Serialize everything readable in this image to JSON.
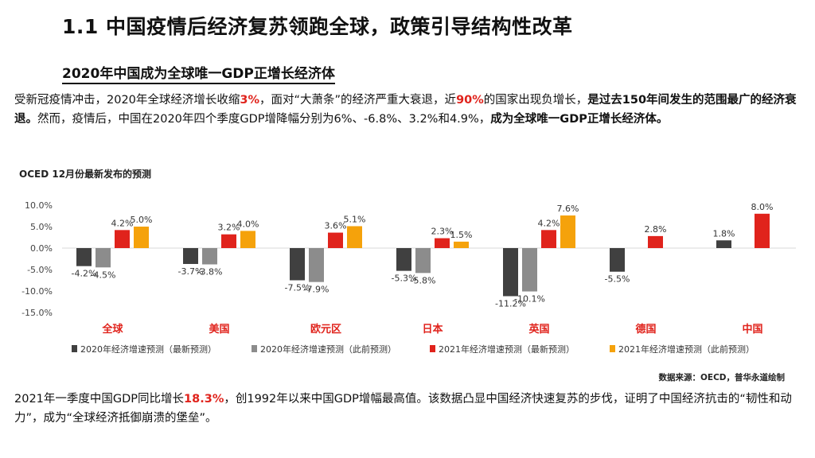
{
  "header": {
    "title": "1.1 中国疫情后经济复苏领跑全球，政策引导结构性改革",
    "subtitle": "2020年中国成为全球唯一GDP正增长经济体"
  },
  "intro": {
    "t1": "受新冠疫情冲击，2020年全球经济增长收缩",
    "h1": "3%",
    "t2": "，面对“大萧条”的经济严重大衰退，近",
    "h2": "90%",
    "t3": "的国家出现负增长，",
    "b1": "是过去150年间发生的范围最广的经济衰退。",
    "t4": "然而，疫情后，中国在2020年四个季度GDP增降幅分别为6%、-6.8%、3.2%和4.9%，",
    "b2": "成为全球唯一GDP正增长经济体。"
  },
  "chart_title": "OCED 12月份最新发布的预测",
  "source": "数据来源：OECD，普华永道绘制",
  "outro": {
    "t1": "2021年一季度中国GDP同比增长",
    "h1": "18.3%",
    "t2": "，创1992年以来中国GDP增幅最高值。该数据凸显中国经济快速复苏的步伐，证明了中国经济抗击的“韧性和动力”，成为“全球经济抵御崩溃的堡垒”。"
  },
  "colors": {
    "series": [
      "#404040",
      "#8c8c8c",
      "#e0231c",
      "#f5a20b"
    ],
    "accent": "#e0231c"
  },
  "chart_data": {
    "type": "bar",
    "title": "OCED 12月份最新发布的预测",
    "categories": [
      "全球",
      "美国",
      "欧元区",
      "日本",
      "英国",
      "德国",
      "中国"
    ],
    "ylim": [
      -15,
      10
    ],
    "yticks": [
      10,
      5,
      0,
      -5,
      -10,
      -15
    ],
    "ytick_labels": [
      "10.0%",
      "5.0%",
      "0.0%",
      "-5.0%",
      "-10.0%",
      "-15.0%"
    ],
    "series": [
      {
        "name": "2020年经济增速预测（最新预测）",
        "values": [
          -4.2,
          -3.7,
          -7.5,
          -5.3,
          -11.2,
          -5.5,
          1.8
        ],
        "labels": [
          "-4.2%",
          "-3.7%",
          "-7.5%",
          "-5.3%",
          "-11.2%",
          "-5.5%",
          "1.8%"
        ]
      },
      {
        "name": "2020年经济增速预测（此前预测）",
        "values": [
          -4.5,
          -3.8,
          -7.9,
          -5.8,
          -10.1,
          null,
          null
        ],
        "labels": [
          "-4.5%",
          "-3.8%",
          "-7.9%",
          "-5.8%",
          "-10.1%",
          "",
          ""
        ]
      },
      {
        "name": "2021年经济增速预测（最新预测）",
        "values": [
          4.2,
          3.2,
          3.6,
          2.3,
          4.2,
          2.8,
          8.0
        ],
        "labels": [
          "4.2%",
          "3.2%",
          "3.6%",
          "2.3%",
          "4.2%",
          "2.8%",
          "8.0%"
        ]
      },
      {
        "name": "2021年经济增速预测（此前预测）",
        "values": [
          5.0,
          4.0,
          5.1,
          1.5,
          7.6,
          null,
          null
        ],
        "labels": [
          "5.0%",
          "4.0%",
          "5.1%",
          "1.5%",
          "7.6%",
          "",
          ""
        ]
      }
    ],
    "legend_position": "bottom"
  }
}
